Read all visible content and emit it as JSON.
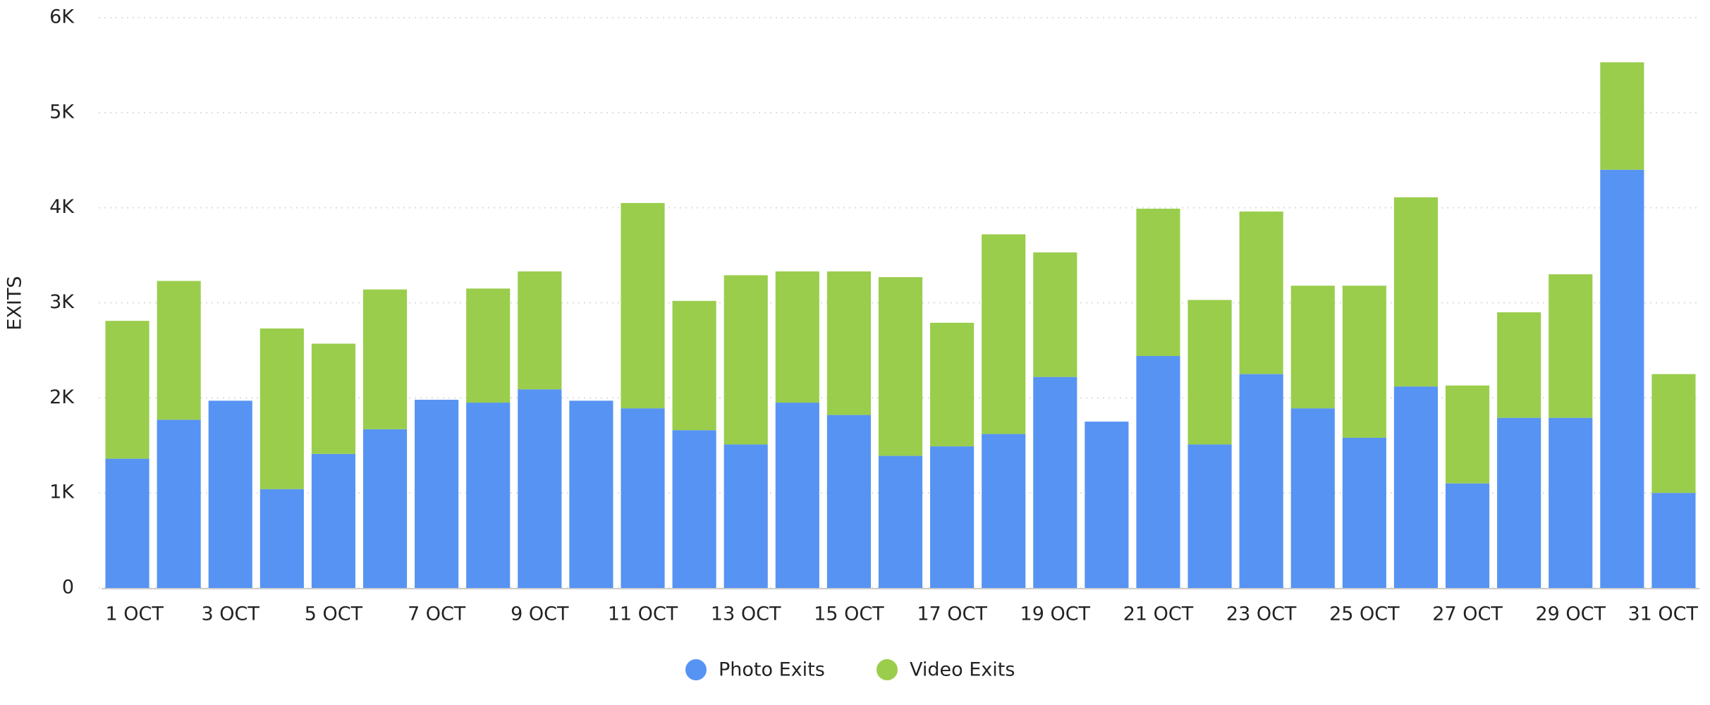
{
  "chart_data": {
    "type": "stacked_bar",
    "y_label": "EXITS",
    "categories": [
      "1 OCT",
      null,
      "3 OCT",
      null,
      "5 OCT",
      null,
      "7 OCT",
      null,
      "9 OCT",
      null,
      "11 OCT",
      null,
      "13 OCT",
      null,
      "15 OCT",
      null,
      "17 OCT",
      null,
      "19 OCT",
      null,
      "21 OCT",
      null,
      "23 OCT",
      null,
      "25 OCT",
      null,
      "27 OCT",
      null,
      "29 OCT",
      null,
      "31 OCT"
    ],
    "series": [
      {
        "name": "Photo Exits",
        "color": "#5793f3",
        "values": [
          1360,
          1770,
          1970,
          1040,
          1410,
          1670,
          1980,
          1950,
          2090,
          1970,
          1890,
          1660,
          1510,
          1950,
          1820,
          1390,
          1490,
          1620,
          2220,
          1750,
          2440,
          1510,
          2250,
          1890,
          1580,
          2120,
          1100,
          1790,
          1790,
          4400,
          1000
        ]
      },
      {
        "name": "Video Exits",
        "color": "#9acd4c",
        "values": [
          1450,
          1460,
          0,
          1690,
          1160,
          1470,
          0,
          1200,
          1240,
          0,
          2160,
          1360,
          1780,
          1380,
          1510,
          1880,
          1300,
          2100,
          1310,
          0,
          1550,
          1520,
          1710,
          1290,
          1600,
          1990,
          1030,
          1110,
          1510,
          1130,
          1250
        ]
      }
    ],
    "ylim": [
      0,
      6000
    ],
    "yticks": [
      0,
      {
        "value": 1000,
        "label": "1K"
      },
      {
        "value": 2000,
        "label": "2K"
      },
      {
        "value": 3000,
        "label": "3K"
      },
      {
        "value": 4000,
        "label": "4K"
      },
      {
        "value": 5000,
        "label": "5K"
      },
      {
        "value": 6000,
        "label": "6K"
      }
    ],
    "grid": true,
    "legend": "bottom"
  }
}
